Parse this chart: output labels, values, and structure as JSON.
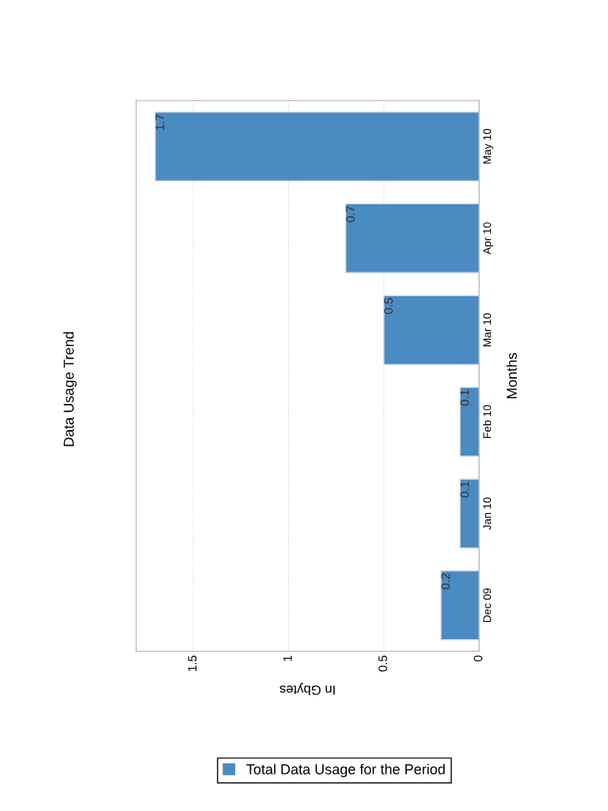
{
  "chart_data": {
    "type": "bar",
    "title": "Data Usage Trend",
    "orientation": "horizontal",
    "xlabel": "In Gbytes",
    "ylabel": "Months",
    "categories": [
      "May 10",
      "Apr 10",
      "Mar 10",
      "Feb 10",
      "Jan 10",
      "Dec 09"
    ],
    "series": [
      {
        "name": "Total Data Usage for the Period",
        "color": "#4a8bc2",
        "values": [
          1.7,
          0.7,
          0.5,
          0.1,
          0.1,
          0.2
        ]
      }
    ],
    "xlim": [
      1.8,
      0
    ],
    "xticks": [
      0,
      0.5,
      1,
      1.5
    ],
    "grid": "x",
    "legend": "bottom",
    "data_labels": true
  }
}
